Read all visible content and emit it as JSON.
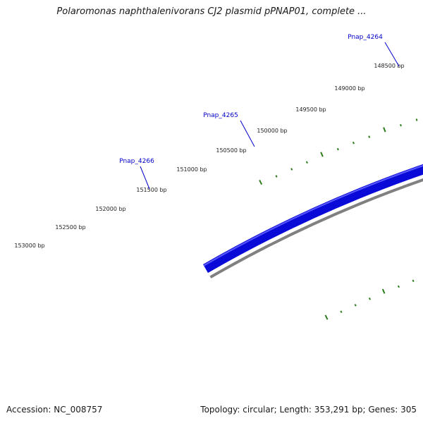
{
  "title": "Polaromonas naphthalenivorans CJ2 plasmid pPNAP01, complete ...",
  "footer": {
    "accession": "Accession: NC_008757",
    "summary": "Topology: circular; Length: 353,291 bp; Genes: 305"
  },
  "colors": {
    "gene_forward": "#0a0ad8",
    "gene_highlight_orange": "#f5a020",
    "gene_highlight_magenta": "#ff2f8c",
    "backbone": "#808080",
    "ticks": "#2e7d1c",
    "gene_label": "#0000cc"
  },
  "scale_labels": [
    "148500 bp",
    "149000 bp",
    "149500 bp",
    "150000 bp",
    "150500 bp",
    "151000 bp",
    "151500 bp",
    "152000 bp",
    "152500 bp",
    "153000 bp"
  ],
  "gene_labels": [
    "Pnap_4264",
    "Pnap_4265",
    "Pnap_4266"
  ]
}
